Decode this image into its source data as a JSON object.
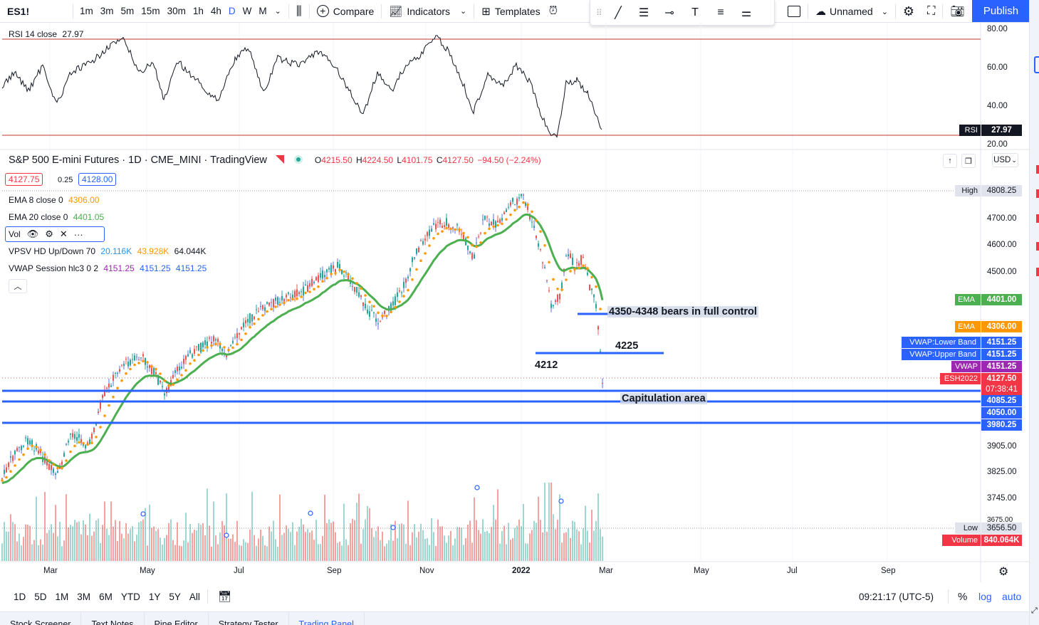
{
  "toolbar": {
    "symbol": "ES1!",
    "timeframes": [
      "1m",
      "3m",
      "5m",
      "15m",
      "30m",
      "1h",
      "4h",
      "D",
      "W",
      "M"
    ],
    "active_timeframe": "D",
    "compare_label": "Compare",
    "indicators_label": "Indicators",
    "templates_label": "Templates",
    "layout_name": "Unnamed",
    "publish_label": "Publish"
  },
  "rsi_pane": {
    "legend_name": "RSI 14 close",
    "legend_value": "27.97",
    "badge_label": "RSI",
    "badge_value": "27.97",
    "ticks": [
      "80.00",
      "60.00",
      "40.00",
      "20.00"
    ]
  },
  "main_pane": {
    "title": "S&P 500 E-mini Futures · 1D · CME_MINI · TradingView",
    "ohlc": {
      "o_label": "O",
      "o": "4215.50",
      "h_label": "H",
      "h": "4224.50",
      "l_label": "L",
      "l": "4101.75",
      "c_label": "C",
      "c": "4127.50",
      "change": "−94.50 (−2.24%)"
    },
    "bid": "4127.75",
    "spread": "0.25",
    "ask": "4128.00",
    "currency": "USD",
    "indicators": [
      {
        "name": "EMA 8 close 0",
        "values": [
          "4306.00"
        ]
      },
      {
        "name": "EMA 20 close 0",
        "values": [
          "4401.05"
        ]
      },
      {
        "name": "VPSV HD Up/Down 70",
        "values": [
          "20.116K",
          "43.928K",
          "64.044K"
        ]
      },
      {
        "name": "VWAP Session hlc3 0 2",
        "values": [
          "4151.25",
          "4151.25",
          "4151.25"
        ]
      }
    ],
    "vol_label": "Vol",
    "price_ticks": [
      "4700.00",
      "4600.00",
      "4500.00",
      "3905.00",
      "3825.00",
      "3745.00",
      "3675.00"
    ],
    "tags": {
      "high_label": "High",
      "high_value": "4808.25",
      "ema_label": "EMA",
      "ema20_value": "4401.00",
      "ema8_value": "4306.00",
      "vwap_lower_label": "VWAP:Lower Band",
      "vwap_lower_value": "4151.25",
      "vwap_upper_label": "VWAP:Upper Band",
      "vwap_upper_value": "4151.25",
      "vwap_label": "VWAP",
      "vwap_value": "4151.25",
      "contract_label": "ESH2022",
      "last_price": "4127.50",
      "countdown": "07:38:41",
      "line1": "4085.25",
      "line2": "4050.00",
      "line3": "3980.25",
      "low_label": "Low",
      "low_value": "3656.50",
      "volume_label": "Volume",
      "volume_value": "840.064K"
    },
    "annotations": {
      "bears": "4350-4348 bears in full control",
      "level_4225": "4225",
      "level_4212": "4212",
      "capitulation": "Capitulation area"
    },
    "x_labels": [
      "Mar",
      "May",
      "Jul",
      "Sep",
      "Nov",
      "2022",
      "Mar",
      "May",
      "Jul",
      "Sep"
    ]
  },
  "bottom": {
    "ranges": [
      "1D",
      "5D",
      "1M",
      "3M",
      "6M",
      "YTD",
      "1Y",
      "5Y",
      "All"
    ],
    "clock": "09:21:17 (UTC-5)",
    "percent": "%",
    "log": "log",
    "auto": "auto",
    "tabs": [
      "Stock Screener",
      "Text Notes",
      "Pine Editor",
      "Strategy Tester",
      "Trading Panel"
    ]
  },
  "colors": {
    "accent": "#2962ff",
    "up": "#26a69a",
    "down": "#ef5350",
    "ema20": "#4caf50",
    "ema8": "#ff9800",
    "vwap": "#9c27b0",
    "level_line": "#2962ff"
  }
}
